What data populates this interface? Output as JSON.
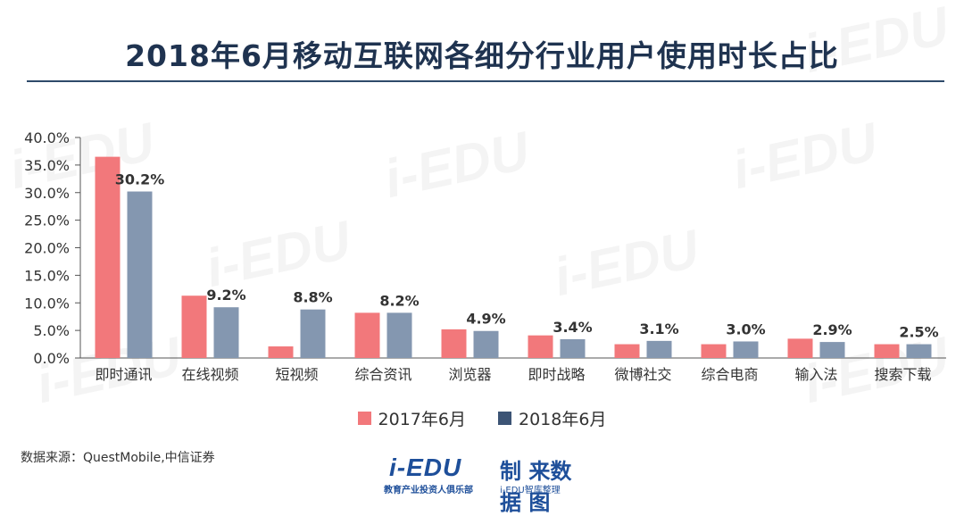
{
  "title": "2018年6月移动互联网各细分行业用户使用时长占比",
  "source": "数据来源：QuestMobile,中信证券",
  "logo": {
    "main": "i-EDU",
    "sub": "教育产业投资人俱乐部",
    "right": "制 来数 据 图",
    "right_sub": "i-EDU智库整理"
  },
  "watermark": "i-EDU",
  "colors": {
    "series_2017": "#f2787b",
    "series_2018": "#8497b0",
    "title": "#1f3350",
    "legend_2018": "#3c5475"
  },
  "chart_data": {
    "type": "bar",
    "title": "2018年6月移动互联网各细分行业用户使用时长占比",
    "categories": [
      "即时通讯",
      "在线视频",
      "短视频",
      "综合资讯",
      "浏览器",
      "即时战略",
      "微博社交",
      "综合电商",
      "输入法",
      "搜索下载"
    ],
    "series": [
      {
        "name": "2017年6月",
        "values": [
          36.5,
          11.3,
          2.1,
          8.2,
          5.2,
          4.1,
          2.5,
          2.5,
          3.5,
          2.5
        ]
      },
      {
        "name": "2018年6月",
        "values": [
          30.2,
          9.2,
          8.8,
          8.2,
          4.9,
          3.4,
          3.1,
          3.0,
          2.9,
          2.5
        ]
      }
    ],
    "data_labels": [
      "30.2%",
      "9.2%",
      "8.8%",
      "8.2%",
      "4.9%",
      "3.4%",
      "3.1%",
      "3.0%",
      "2.9%",
      "2.5%"
    ],
    "y_ticks": [
      "0.0%",
      "5.0%",
      "10.0%",
      "15.0%",
      "20.0%",
      "25.0%",
      "30.0%",
      "35.0%",
      "40.0%"
    ],
    "ylim": [
      0,
      40
    ],
    "legend_position": "bottom",
    "grid": false
  }
}
